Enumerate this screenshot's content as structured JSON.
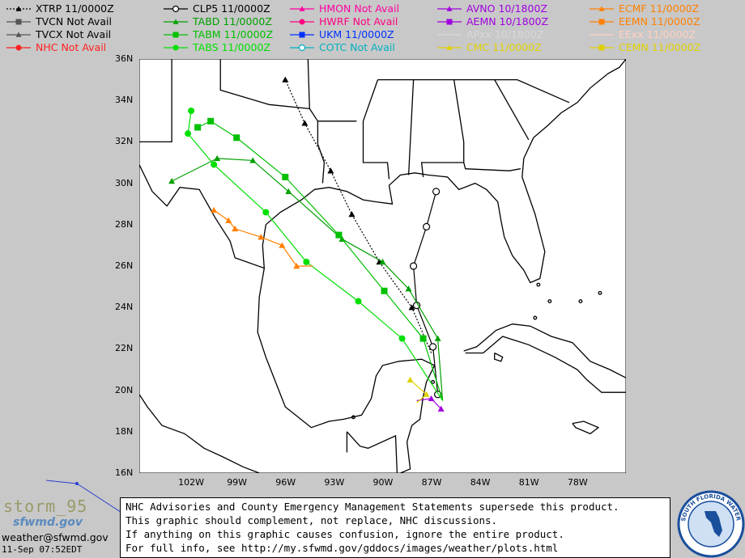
{
  "legend": [
    {
      "label": "XTRP  11/0000Z",
      "color": "#000000",
      "marker": "triangle",
      "dash": true
    },
    {
      "label": "TVCN  Not Avail",
      "color": "#555555",
      "marker": "square"
    },
    {
      "label": "TVCX  Not Avail",
      "color": "#555555",
      "marker": "triangle"
    },
    {
      "label": "NHC  Not Avail",
      "color": "#ff2020",
      "marker": "circle"
    },
    {
      "label": "CLP5  11/0000Z",
      "color": "#000000",
      "marker": "circle-open"
    },
    {
      "label": "TABD  11/0000Z",
      "color": "#00a000",
      "marker": "triangle"
    },
    {
      "label": "TABM  11/0000Z",
      "color": "#00c000",
      "marker": "square"
    },
    {
      "label": "TABS  11/0000Z",
      "color": "#00e000",
      "marker": "circle"
    },
    {
      "label": "HMON  Not Avail",
      "color": "#ff00a0",
      "marker": "triangle"
    },
    {
      "label": "HWRF  Not Avail",
      "color": "#ff0080",
      "marker": "circle"
    },
    {
      "label": "UKM    11/0000Z",
      "color": "#0030ff",
      "marker": "square"
    },
    {
      "label": "COTC  Not Avail",
      "color": "#00b0c0",
      "marker": "circle-open"
    },
    {
      "label": "AVNO  10/1800Z",
      "color": "#a000e0",
      "marker": "triangle"
    },
    {
      "label": "AEMN  10/1800Z",
      "color": "#a000e0",
      "marker": "square"
    },
    {
      "label": "APxx   10/1800Z",
      "color": "#d8d8d8",
      "marker": "none"
    },
    {
      "label": "CMC    11/0000Z",
      "color": "#e0d000",
      "marker": "triangle"
    },
    {
      "label": "ECMF  11/0000Z",
      "color": "#ff8000",
      "marker": "triangle"
    },
    {
      "label": "EEMN  11/0000Z",
      "color": "#ff8000",
      "marker": "square"
    },
    {
      "label": "EExx   11/0000Z",
      "color": "#ffd0c0",
      "marker": "none"
    },
    {
      "label": "CEMN  11/0000Z",
      "color": "#e0d000",
      "marker": "square"
    }
  ],
  "map": {
    "lon_range": [
      -105,
      -75
    ],
    "lat_range": [
      16,
      36
    ],
    "lon_ticks": [
      "102W",
      "99W",
      "96W",
      "93W",
      "90W",
      "87W",
      "84W",
      "81W",
      "78W"
    ],
    "lat_ticks": [
      "36N",
      "34N",
      "32N",
      "30N",
      "28N",
      "26N",
      "24N",
      "22N",
      "20N",
      "18N",
      "16N"
    ]
  },
  "tracks": [
    {
      "model": "XTRP",
      "color": "#000000",
      "marker": "triangle",
      "dash": true,
      "points": [
        [
          -87.0,
          21.8
        ],
        [
          -88.2,
          24.0
        ],
        [
          -90.2,
          26.2
        ],
        [
          -91.9,
          28.5
        ],
        [
          -93.2,
          30.6
        ],
        [
          -94.8,
          32.9
        ],
        [
          -96.0,
          35.0
        ]
      ]
    },
    {
      "model": "CLP5",
      "color": "#000000",
      "marker": "circle-open",
      "points": [
        [
          -86.6,
          19.8
        ],
        [
          -86.9,
          22.1
        ],
        [
          -87.9,
          24.1
        ],
        [
          -88.1,
          26.0
        ],
        [
          -87.3,
          27.9
        ],
        [
          -86.7,
          29.6
        ]
      ]
    },
    {
      "model": "TABD",
      "color": "#00a000",
      "marker": "triangle",
      "points": [
        [
          -86.3,
          19.5
        ],
        [
          -86.6,
          22.5
        ],
        [
          -88.4,
          24.9
        ],
        [
          -90.0,
          26.2
        ],
        [
          -92.5,
          27.3
        ],
        [
          -95.8,
          29.6
        ],
        [
          -98.0,
          31.1
        ],
        [
          -100.2,
          31.2
        ],
        [
          -103.0,
          30.1
        ]
      ]
    },
    {
      "model": "TABM",
      "color": "#00c000",
      "marker": "square",
      "points": [
        [
          -86.3,
          19.5
        ],
        [
          -87.5,
          22.5
        ],
        [
          -89.9,
          24.8
        ],
        [
          -92.7,
          27.5
        ],
        [
          -96.0,
          30.3
        ],
        [
          -99.0,
          32.2
        ],
        [
          -100.6,
          33.0
        ],
        [
          -101.4,
          32.7
        ]
      ]
    },
    {
      "model": "TABS",
      "color": "#00e000",
      "marker": "circle",
      "points": [
        [
          -86.3,
          19.5
        ],
        [
          -88.8,
          22.5
        ],
        [
          -91.5,
          24.3
        ],
        [
          -94.7,
          26.2
        ],
        [
          -97.2,
          28.6
        ],
        [
          -100.4,
          30.9
        ],
        [
          -102.0,
          32.4
        ],
        [
          -101.8,
          33.5
        ]
      ]
    },
    {
      "model": "ECMF",
      "color": "#ff8000",
      "marker": "triangle",
      "points": [
        [
          -94.3,
          26.0
        ],
        [
          -95.3,
          26.0
        ],
        [
          -96.2,
          27.0
        ],
        [
          -97.5,
          27.4
        ],
        [
          -99.1,
          27.8
        ],
        [
          -99.5,
          28.2
        ],
        [
          -100.4,
          28.7
        ]
      ]
    },
    {
      "model": "AVNO",
      "color": "#a000e0",
      "marker": "triangle",
      "points": [
        [
          -87.9,
          19.5
        ],
        [
          -87.0,
          19.6
        ],
        [
          -86.4,
          19.1
        ]
      ]
    },
    {
      "model": "CMC",
      "color": "#e0d000",
      "marker": "triangle",
      "points": [
        [
          -87.9,
          19.4
        ],
        [
          -87.3,
          19.8
        ],
        [
          -88.3,
          20.5
        ]
      ]
    }
  ],
  "footer": {
    "lines": [
      "NHC Advisories and County Emergency Management Statements supersede this product.",
      "This graphic should complement, not replace, NHC discussions.",
      "If anything on this graphic causes confusion, ignore the entire product.",
      "For full info, see  http://my.sfwmd.gov/gddocs/images/weather/plots.html"
    ],
    "brand": "storm_95",
    "brand_site": "sfwmd.gov",
    "email": "weather@sfwmd.gov",
    "timestamp": "11-Sep 07:52EDT"
  },
  "seal_text": "SOUTH FLORIDA WATER MANAGEMENT DISTRICT"
}
